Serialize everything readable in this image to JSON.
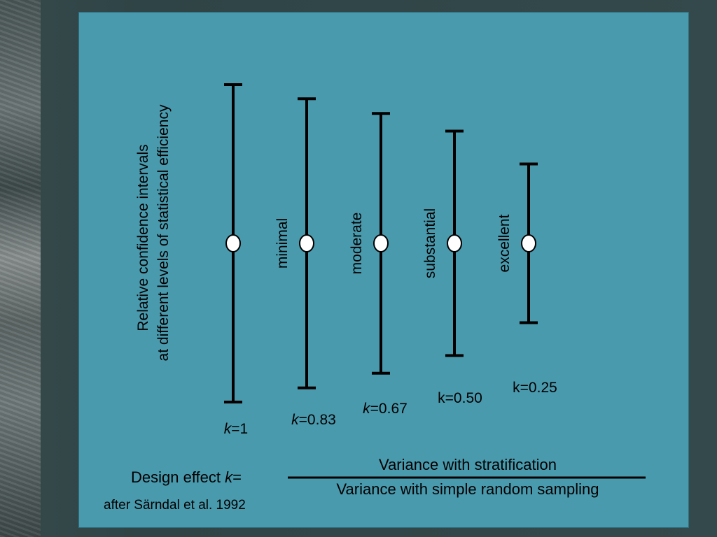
{
  "ylabel_line1": "Relative confidence intervals",
  "ylabel_line2": "at different levels of statistical efficiency",
  "colors": {
    "panel": "#4a9aae",
    "bar": "#000000",
    "marker": "#ffffff"
  },
  "chart_data": {
    "type": "errorbar",
    "ylabel": "Relative confidence intervals at different levels of statistical efficiency",
    "categories": [
      "",
      "minimal",
      "moderate",
      "substantial",
      "excellent"
    ],
    "k_values": [
      1,
      0.83,
      0.67,
      0.5,
      0.25
    ],
    "k_labels": [
      {
        "italic": "k",
        "rest": "=1"
      },
      {
        "italic": "k",
        "rest": "=0.83"
      },
      {
        "italic": "k",
        "rest": "=0.67"
      },
      {
        "italic": "",
        "rest": "k=0.50"
      },
      {
        "italic": "",
        "rest": "k=0.25"
      }
    ]
  },
  "formula": {
    "prefix": "Design effect ",
    "k": "k",
    "eq": "=",
    "numerator": "Variance with stratification",
    "denominator": "Variance with simple random sampling"
  },
  "citation": "after Särndal et al. 1992"
}
